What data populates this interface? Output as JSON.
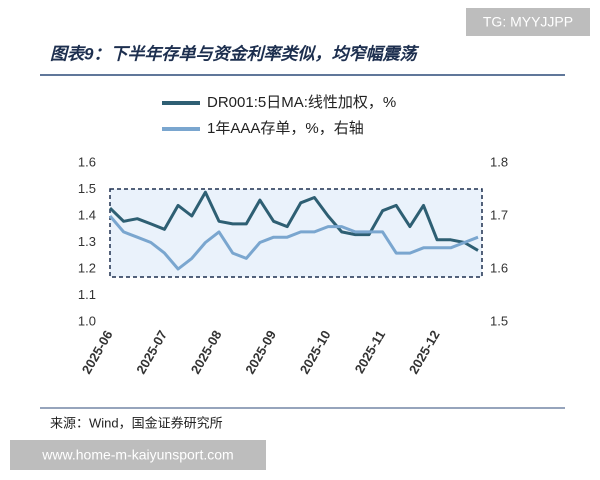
{
  "chart_data": {
    "type": "line",
    "watermark": "TG: MYYJJPP",
    "title": "图表9：下半年存单与资金利率类似，均窄幅震荡",
    "source": "来源：Wind，国金证券研究所",
    "footer": "www.home-m-kaiyunsport.com",
    "categories": [
      "2025-06",
      null,
      null,
      null,
      "2025-07",
      null,
      null,
      null,
      "2025-08",
      null,
      null,
      null,
      "2025-09",
      null,
      null,
      null,
      "2025-10",
      null,
      null,
      null,
      "2025-11",
      null,
      null,
      null,
      "2025-12",
      null,
      null,
      null
    ],
    "series": [
      {
        "name": "DR001:5日MA:线性加权，%",
        "color": "#2e5f73",
        "axis": "y",
        "values": [
          1.43,
          1.38,
          1.39,
          1.37,
          1.35,
          1.44,
          1.4,
          1.49,
          1.38,
          1.37,
          1.37,
          1.46,
          1.38,
          1.36,
          1.45,
          1.47,
          1.4,
          1.34,
          1.33,
          1.33,
          1.42,
          1.44,
          1.36,
          1.44,
          1.31,
          1.31,
          1.3,
          1.27
        ]
      },
      {
        "name": "1年AAA存单，%，右轴",
        "color": "#7aa6cf",
        "axis": "y2",
        "values": [
          1.7,
          1.67,
          1.66,
          1.65,
          1.63,
          1.6,
          1.62,
          1.65,
          1.67,
          1.63,
          1.62,
          1.65,
          1.66,
          1.66,
          1.67,
          1.67,
          1.68,
          1.68,
          1.67,
          1.67,
          1.67,
          1.63,
          1.63,
          1.64,
          1.64,
          1.64,
          1.65,
          1.66
        ]
      }
    ],
    "ylim": [
      1.0,
      1.6
    ],
    "yticks": [
      {
        "value": 1,
        "label": "1.0"
      },
      1.1,
      1.2,
      1.3,
      1.4,
      1.5,
      1.6
    ],
    "y2lim": [
      1.5,
      1.8
    ],
    "y2ticks": [
      1.5,
      1.6,
      1.7,
      1.8
    ]
  }
}
